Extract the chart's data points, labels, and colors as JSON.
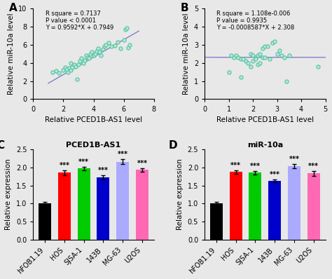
{
  "panel_A": {
    "scatter_x": [
      1.3,
      1.5,
      1.7,
      2.0,
      2.1,
      2.2,
      2.3,
      2.4,
      2.5,
      2.5,
      2.6,
      2.7,
      2.8,
      2.9,
      3.0,
      3.1,
      3.2,
      3.3,
      3.4,
      3.5,
      3.6,
      3.7,
      3.8,
      3.9,
      4.0,
      4.1,
      4.2,
      4.3,
      4.4,
      4.5,
      4.6,
      4.7,
      4.8,
      5.0,
      5.2,
      5.4,
      5.6,
      5.8,
      6.0,
      6.1,
      6.2,
      6.3,
      6.4
    ],
    "scatter_y": [
      3.0,
      3.1,
      2.9,
      3.2,
      3.5,
      3.3,
      3.0,
      3.4,
      3.2,
      4.0,
      3.5,
      3.8,
      3.6,
      2.2,
      3.8,
      4.2,
      4.5,
      4.0,
      4.3,
      4.8,
      4.6,
      4.5,
      5.0,
      5.2,
      4.8,
      5.0,
      5.3,
      5.6,
      5.2,
      4.8,
      5.5,
      5.8,
      6.0,
      6.2,
      5.8,
      5.9,
      6.3,
      5.6,
      6.5,
      7.7,
      7.8,
      5.7,
      6.0
    ],
    "line_x": [
      1.0,
      7.0
    ],
    "line_y": [
      1.7541,
      7.5093
    ],
    "xlabel": "Relative PCED1B-AS1 level",
    "ylabel": "Relative miR-10a level",
    "xlim": [
      0,
      8
    ],
    "ylim": [
      0,
      10
    ],
    "xticks": [
      0,
      2,
      4,
      6,
      8
    ],
    "yticks": [
      0,
      2,
      4,
      6,
      8,
      10
    ],
    "annotation": "R square = 0.7137\nP value < 0.0001\nY = 0.9592*X + 0.7949",
    "label": "A"
  },
  "panel_B": {
    "scatter_x": [
      1.0,
      1.1,
      1.2,
      1.3,
      1.4,
      1.5,
      1.5,
      1.6,
      1.7,
      1.8,
      1.9,
      1.9,
      2.0,
      2.0,
      2.1,
      2.1,
      2.2,
      2.2,
      2.3,
      2.3,
      2.4,
      2.4,
      2.5,
      2.5,
      2.6,
      2.7,
      2.8,
      2.9,
      3.0,
      3.1,
      3.2,
      3.3,
      3.4,
      3.5,
      4.7
    ],
    "scatter_y": [
      1.5,
      2.4,
      2.3,
      2.4,
      2.3,
      2.2,
      1.2,
      2.2,
      2.1,
      2.0,
      2.5,
      1.8,
      2.4,
      2.1,
      2.3,
      2.2,
      2.4,
      1.9,
      2.5,
      2.0,
      2.8,
      2.3,
      2.9,
      2.3,
      2.9,
      2.2,
      3.1,
      3.2,
      2.5,
      2.7,
      2.4,
      2.3,
      1.0,
      2.4,
      1.8
    ],
    "line_x": [
      0,
      5
    ],
    "line_y": [
      2.308,
      2.3036
    ],
    "xlabel": "Relative PCED1B-AS1 level",
    "ylabel": "Relative miR-10a level",
    "xlim": [
      0,
      5
    ],
    "ylim": [
      0,
      5
    ],
    "xticks": [
      0,
      1,
      2,
      3,
      4,
      5
    ],
    "yticks": [
      0,
      1,
      2,
      3,
      4,
      5
    ],
    "annotation": "R square = 1.108e-0.006\nP value = 0.9935\nY = -0.0008587*X + 2.308",
    "label": "B"
  },
  "panel_C": {
    "categories": [
      "hFOB1.19",
      "HOS",
      "SJSA-1",
      "143B",
      "MG-63",
      "U2OS"
    ],
    "values": [
      1.01,
      1.85,
      1.97,
      1.72,
      2.15,
      1.93
    ],
    "errors": [
      0.03,
      0.06,
      0.05,
      0.06,
      0.07,
      0.05
    ],
    "colors": [
      "#000000",
      "#ff0000",
      "#00cc00",
      "#0000cc",
      "#aaaaff",
      "#ff69b4"
    ],
    "ylabel": "Relative expression",
    "ylim": [
      0,
      2.5
    ],
    "yticks": [
      0.0,
      0.5,
      1.0,
      1.5,
      2.0,
      2.5
    ],
    "title": "PCED1B-AS1",
    "label": "C",
    "sig_labels": [
      "",
      "***",
      "***",
      "***",
      "***",
      "***"
    ]
  },
  "panel_D": {
    "categories": [
      "hFOB1.19",
      "HOS",
      "SJSA-1",
      "143B",
      "MG-63",
      "U2OS"
    ],
    "values": [
      1.01,
      1.87,
      1.85,
      1.63,
      2.03,
      1.83
    ],
    "errors": [
      0.03,
      0.05,
      0.05,
      0.04,
      0.05,
      0.06
    ],
    "colors": [
      "#000000",
      "#ff0000",
      "#00cc00",
      "#0000cc",
      "#aaaaff",
      "#ff69b4"
    ],
    "ylabel": "Relative expression",
    "ylim": [
      0,
      2.5
    ],
    "yticks": [
      0.0,
      0.5,
      1.0,
      1.5,
      2.0,
      2.5
    ],
    "title": "miR-10a",
    "label": "D",
    "sig_labels": [
      "",
      "***",
      "***",
      "***",
      "***",
      "***"
    ]
  },
  "scatter_facecolor": "#aeecd8",
  "scatter_edgecolor": "#5bbfa0",
  "line_color": "#8080cc",
  "background_color": "#e8e8e8",
  "annotation_fontsize": 6.0,
  "axis_label_fontsize": 7.5,
  "tick_fontsize": 7,
  "bar_fontsize": 6.5,
  "title_fontsize": 8,
  "sig_fontsize": 7
}
